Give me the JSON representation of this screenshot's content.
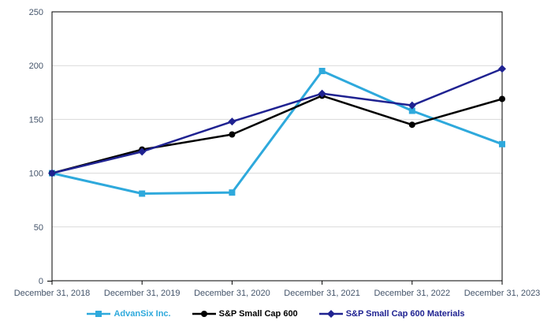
{
  "chart_data": {
    "type": "line",
    "title": "",
    "xlabel": "",
    "ylabel": "",
    "categories": [
      "December 31, 2018",
      "December 31, 2019",
      "December 31, 2020",
      "December 31, 2021",
      "December 31, 2022",
      "December 31, 2023"
    ],
    "series": [
      {
        "name": "AdvanSix Inc.",
        "color": "#2EA9DC",
        "marker": "square",
        "values": [
          100,
          81,
          82,
          195,
          158,
          127
        ]
      },
      {
        "name": "S&P Small Cap 600",
        "color": "#000000",
        "marker": "circle",
        "values": [
          100,
          122,
          136,
          172,
          145,
          169
        ]
      },
      {
        "name": "S&P Small Cap 600 Materials",
        "color": "#1F2291",
        "marker": "diamond",
        "values": [
          100,
          120,
          148,
          174,
          163,
          197
        ]
      }
    ],
    "ylim": [
      0,
      250
    ],
    "yticks": [
      0,
      50,
      100,
      150,
      200,
      250
    ],
    "grid": true,
    "legend_position": "bottom",
    "colors": {
      "gridline": "#D9D9D9",
      "plot_border": "#000000",
      "tick_label": "#44546A",
      "background": "#FFFFFF"
    }
  }
}
